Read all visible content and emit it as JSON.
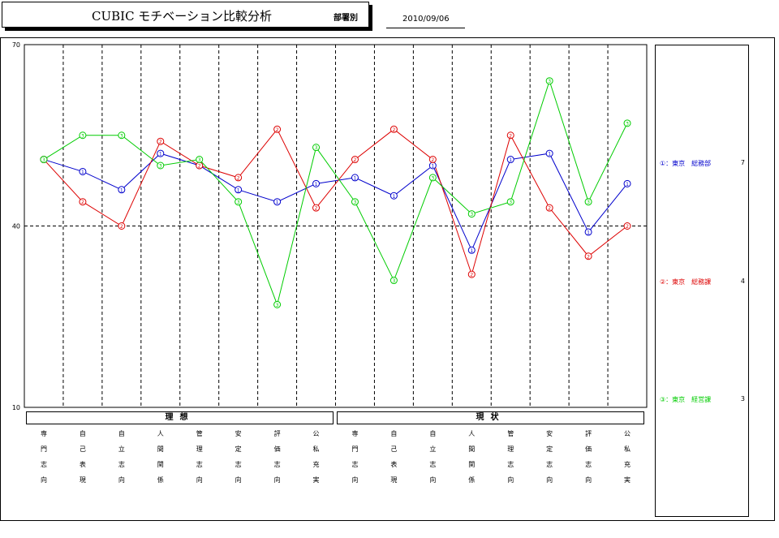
{
  "header": {
    "title": "CUBIC モチベーション比較分析",
    "subtitle": "部署別",
    "date": "2010/09/06"
  },
  "groups": [
    {
      "label": "理想"
    },
    {
      "label": "現状"
    }
  ],
  "legend": [
    {
      "label": "①：東京　総務部",
      "count": "7",
      "color": "#0000cc"
    },
    {
      "label": "②：東京　総務課",
      "count": "4",
      "color": "#dd0000"
    },
    {
      "label": "③：東京　経営課",
      "count": "3",
      "color": "#00cc00"
    }
  ],
  "chart_data": {
    "type": "line",
    "ylim": [
      10,
      70
    ],
    "yticks": [
      10,
      40,
      70
    ],
    "categories": [
      [
        "専",
        "門",
        "志",
        "向"
      ],
      [
        "自",
        "己",
        "表",
        "現"
      ],
      [
        "自",
        "立",
        "志",
        "向"
      ],
      [
        "人",
        "間",
        "関",
        "係"
      ],
      [
        "管",
        "理",
        "志",
        "向"
      ],
      [
        "安",
        "定",
        "志",
        "向"
      ],
      [
        "評",
        "価",
        "志",
        "向"
      ],
      [
        "公",
        "私",
        "充",
        "実"
      ],
      [
        "専",
        "門",
        "志",
        "向"
      ],
      [
        "自",
        "己",
        "表",
        "現"
      ],
      [
        "自",
        "立",
        "志",
        "向"
      ],
      [
        "人",
        "間",
        "関",
        "係"
      ],
      [
        "管",
        "理",
        "志",
        "向"
      ],
      [
        "安",
        "定",
        "志",
        "向"
      ],
      [
        "評",
        "価",
        "志",
        "向"
      ],
      [
        "公",
        "私",
        "充",
        "実"
      ]
    ],
    "series": [
      {
        "name": "①：東京　総務部",
        "marker": "①",
        "color": "#0000cc",
        "values": [
          51,
          49,
          46,
          52,
          50,
          46,
          44,
          47,
          48,
          45,
          50,
          36,
          51,
          52,
          39,
          47
        ]
      },
      {
        "name": "②：東京　総務課",
        "marker": "②",
        "color": "#dd0000",
        "values": [
          51,
          44,
          40,
          54,
          50,
          48,
          56,
          43,
          51,
          56,
          51,
          32,
          55,
          43,
          35,
          40
        ]
      },
      {
        "name": "③：東京　経営課",
        "marker": "③",
        "color": "#00cc00",
        "values": [
          51,
          55,
          55,
          50,
          51,
          44,
          27,
          53,
          44,
          31,
          48,
          42,
          44,
          64,
          44,
          57
        ]
      }
    ]
  }
}
